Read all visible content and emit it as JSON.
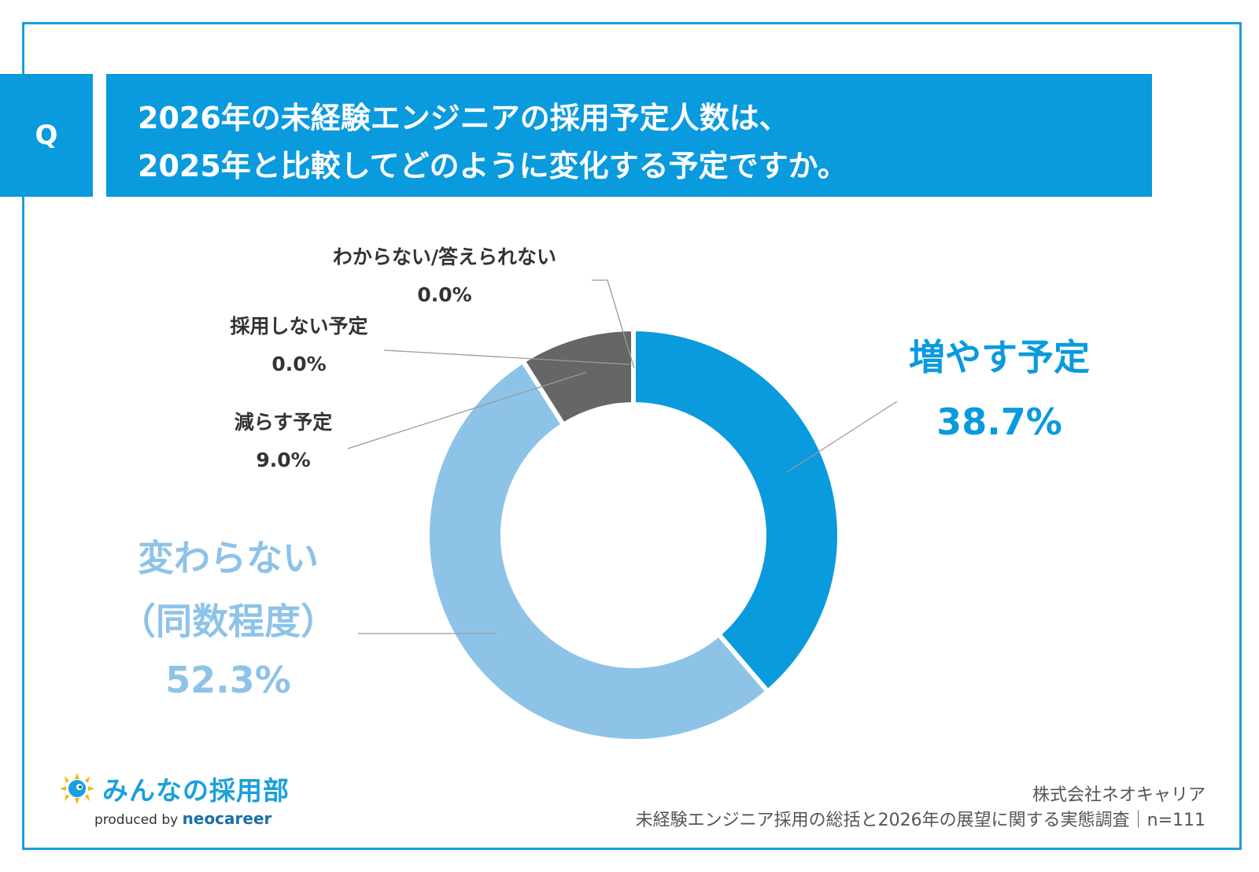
{
  "header": {
    "q_label": "Q",
    "title_line1": "2026年の未経験エンジニアの採用予定人数は、",
    "title_line2": "2025年と比較してどのように変化する予定ですか。"
  },
  "chart_data": {
    "type": "pie",
    "variant": "donut",
    "slices": [
      {
        "label": "増やす予定",
        "value": 38.7,
        "value_label": "38.7%",
        "color": "#0a9ade"
      },
      {
        "label": "変わらない\n（同数程度）",
        "value": 52.3,
        "value_label": "52.3%",
        "color": "#8ec3e8"
      },
      {
        "label": "減らす予定",
        "value": 9.0,
        "value_label": "9.0%",
        "color": "#666666"
      },
      {
        "label": "採用しない予定",
        "value": 0.0,
        "value_label": "0.0%",
        "color": "#333333"
      },
      {
        "label": "わからない/答えられない",
        "value": 0.0,
        "value_label": "0.0%",
        "color": "#999999"
      }
    ]
  },
  "brand": {
    "name": "みんなの採用部",
    "produced_by": "produced by",
    "company": "neocareer"
  },
  "source": {
    "line1": "株式会社ネオキャリア",
    "line2": "未経験エンジニア採用の総括と2026年の展望に関する実態調査｜n=111"
  }
}
